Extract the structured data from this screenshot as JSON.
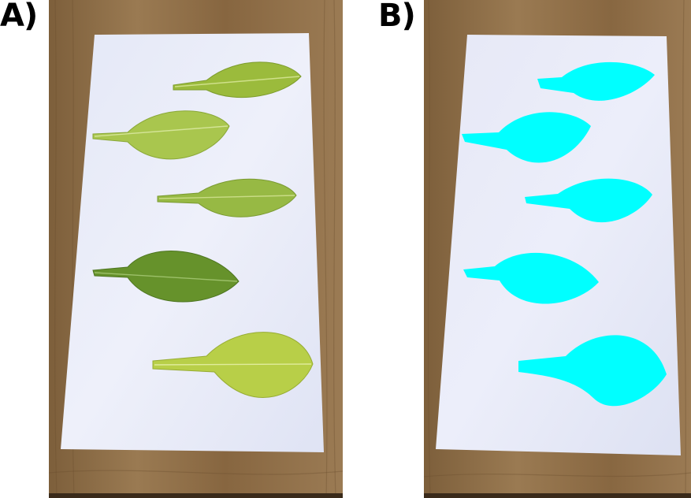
{
  "figure": {
    "panels": [
      {
        "label": "A)",
        "leaf_fill_colors": [
          "#9bbb3c",
          "#a9c64e",
          "#97b944",
          "#66922b",
          "#b8cf48"
        ]
      },
      {
        "label": "B)",
        "mask_color": "#00ffff"
      }
    ],
    "background_colors": {
      "wood": "#8c6c45",
      "paper": "#e9ecf8"
    }
  }
}
